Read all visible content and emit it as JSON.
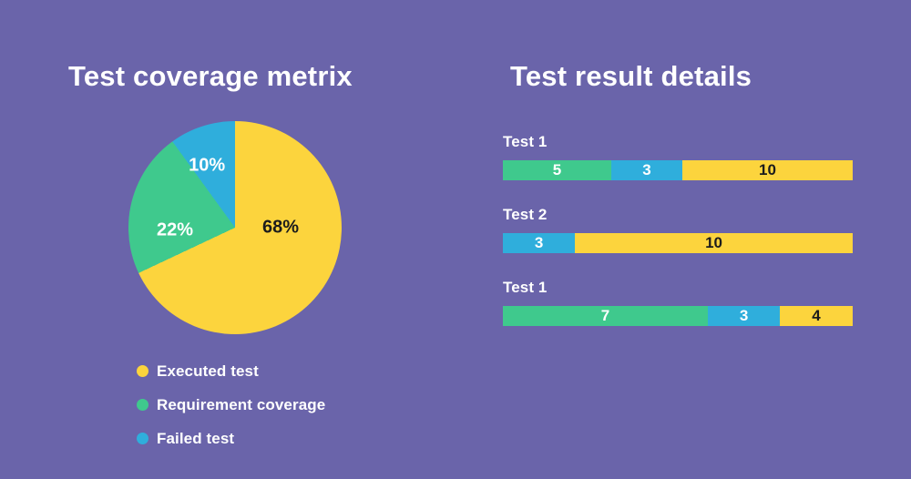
{
  "page": {
    "background": "#6A64AA"
  },
  "colors": {
    "yellow": "#FCD43D",
    "green": "#3FC98D",
    "blue": "#2FAEDC",
    "title_text": "#FFFFFF",
    "dark_text": "#1C1C1C"
  },
  "pie_section": {
    "title": "Test coverage metrix",
    "slice_labels": [
      "68%",
      "22%",
      "10%"
    ],
    "legend": [
      {
        "label": "Executed test",
        "color": "yellow"
      },
      {
        "label": "Requirement coverage",
        "color": "green"
      },
      {
        "label": "Failed test",
        "color": "blue"
      }
    ]
  },
  "bars_section": {
    "title": "Test result details",
    "rows": [
      {
        "label": "Test 1",
        "segments": [
          {
            "value": 5,
            "color": "green",
            "text": "light",
            "width_pct": 31.0
          },
          {
            "value": 3,
            "color": "blue",
            "text": "light",
            "width_pct": 20.3
          },
          {
            "value": 10,
            "color": "yellow",
            "text": "dark",
            "width_pct": 48.7
          }
        ]
      },
      {
        "label": "Test 2",
        "segments": [
          {
            "value": 3,
            "color": "blue",
            "text": "light",
            "width_pct": 20.6
          },
          {
            "value": 10,
            "color": "yellow",
            "text": "dark",
            "width_pct": 79.4
          }
        ]
      },
      {
        "label": "Test 1",
        "segments": [
          {
            "value": 7,
            "color": "green",
            "text": "light",
            "width_pct": 58.6
          },
          {
            "value": 3,
            "color": "blue",
            "text": "light",
            "width_pct": 20.6
          },
          {
            "value": 4,
            "color": "yellow",
            "text": "dark",
            "width_pct": 20.8
          }
        ]
      }
    ]
  },
  "chart_data": [
    {
      "type": "pie",
      "title": "Test coverage metrix",
      "labels": [
        "Executed test",
        "Requirement coverage",
        "Failed test"
      ],
      "values": [
        68,
        22,
        10
      ],
      "unit": "percent",
      "slice_labels": [
        "68%",
        "22%",
        "10%"
      ],
      "colors": [
        "#FCD43D",
        "#3FC98D",
        "#2FAEDC"
      ],
      "rotation": "first slice starts at 12 o'clock, clockwise",
      "legend_position": "bottom-left"
    },
    {
      "type": "bar",
      "orientation": "horizontal-stacked",
      "title": "Test result details",
      "categories": [
        "Test 1",
        "Test 2",
        "Test 1"
      ],
      "series": [
        {
          "name": "Requirement coverage",
          "color": "#3FC98D",
          "values": [
            5,
            null,
            7
          ]
        },
        {
          "name": "Failed test",
          "color": "#2FAEDC",
          "values": [
            3,
            3,
            3
          ]
        },
        {
          "name": "Executed test",
          "color": "#FCD43D",
          "values": [
            10,
            10,
            4
          ]
        }
      ],
      "value_labels": "inside segments",
      "axes": "none",
      "grid": false
    }
  ]
}
